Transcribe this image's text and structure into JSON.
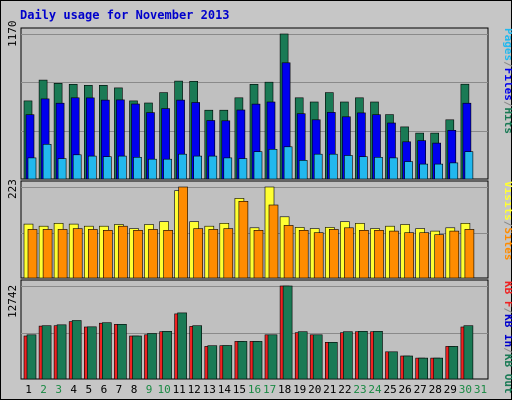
{
  "colors": {
    "frame_bg": "#c6c6c6",
    "plot_bg": "#c0c0c0",
    "page_bg": "#ffffff",
    "title": "#0000cc",
    "grid": "#8a8a8a",
    "hits": "#1a7a55",
    "files": "#0000ee",
    "pages": "#22b8ee",
    "visits": "#ffff33",
    "sites": "#ff8c00",
    "kb_f": "#ee2222",
    "kb_in": "#0000cc",
    "kb_out": "#1a7a55",
    "weekend_label": "#1a8a44",
    "weekday_label": "#000000"
  },
  "chart_data": {
    "type": "bar",
    "title": "Daily usage for November 2013",
    "categories": [
      "1",
      "2",
      "3",
      "4",
      "5",
      "6",
      "7",
      "8",
      "9",
      "10",
      "11",
      "12",
      "13",
      "14",
      "15",
      "16",
      "17",
      "18",
      "19",
      "20",
      "21",
      "22",
      "23",
      "24",
      "25",
      "26",
      "27",
      "28",
      "29",
      "30",
      "31"
    ],
    "weekend_days": [
      "2",
      "3",
      "9",
      "10",
      "16",
      "17",
      "23",
      "24",
      "30",
      "31"
    ],
    "panels": [
      {
        "name": "top",
        "ymax_label": "1170",
        "ymax": 1170,
        "legend": [
          "Pages",
          "/",
          "Files",
          "/",
          "Hits"
        ],
        "legend_colors": [
          "pages",
          "grid",
          "files",
          "grid",
          "hits"
        ],
        "series": [
          {
            "name": "Hits",
            "color": "hits",
            "values": [
              630,
              798,
              772,
              764,
              756,
              756,
              735,
              630,
              613,
              697,
              790,
              788,
              555,
              555,
              655,
              764,
              781,
              1170,
              655,
              621,
              697,
              621,
              655,
              621,
              520,
              420,
              370,
              370,
              478,
              765,
              0
            ]
          },
          {
            "name": "Files",
            "color": "files",
            "values": [
              519,
              646,
              612,
              655,
              654,
              637,
              638,
              605,
              536,
              568,
              637,
              617,
              472,
              470,
              557,
              604,
              621,
              938,
              527,
              478,
              537,
              502,
              533,
              519,
              452,
              300,
              310,
              290,
              393,
              612,
              0
            ]
          },
          {
            "name": "Pages",
            "color": "pages",
            "values": [
              170,
              280,
              165,
              195,
              185,
              180,
              185,
              175,
              160,
              160,
              200,
              185,
              185,
              170,
              165,
              220,
              240,
              260,
              150,
              200,
              200,
              190,
              180,
              175,
              170,
              140,
              120,
              120,
              130,
              220,
              0
            ]
          }
        ]
      },
      {
        "name": "middle",
        "ymax_label": "223",
        "ymax": 223,
        "legend": [
          "Visits",
          "/",
          "Sites"
        ],
        "legend_colors": [
          "visits",
          "grid",
          "sites"
        ],
        "series": [
          {
            "name": "Visits",
            "color": "visits",
            "values": [
              132,
              127,
              134,
              132,
              127,
              127,
              131,
              121,
              131,
              138,
              214,
              138,
              127,
              134,
              195,
              123,
              223,
              150,
              124,
              121,
              124,
              138,
              134,
              121,
              127,
              131,
              121,
              115,
              123,
              134,
              0
            ]
          },
          {
            "name": "Sites",
            "color": "sites",
            "values": [
              119,
              119,
              119,
              121,
              119,
              117,
              127,
              117,
              119,
              117,
              223,
              121,
              119,
              121,
              188,
              117,
              179,
              129,
              117,
              111,
              119,
              123,
              117,
              117,
              115,
              111,
              111,
              106,
              115,
              119,
              0
            ]
          }
        ]
      },
      {
        "name": "bottom",
        "ymax_label": "12742",
        "ymax": 12742,
        "legend": [
          "KB F",
          "/",
          "KB In",
          "/",
          "KB Out"
        ],
        "legend_colors": [
          "kb_f",
          "grid",
          "kb_in",
          "grid",
          "kb_out"
        ],
        "series": [
          {
            "name": "KB F",
            "color": "kb_f",
            "values": [
              5890,
              7250,
              7300,
              7870,
              7130,
              7640,
              7500,
              5890,
              6050,
              6480,
              8920,
              7200,
              4460,
              4560,
              5150,
              5150,
              6050,
              12742,
              6350,
              6050,
              5030,
              6350,
              6480,
              6480,
              3730,
              3150,
              2870,
              2870,
              4460,
              7130,
              0
            ]
          },
          {
            "name": "KB Out",
            "color": "kb_out",
            "values": [
              6050,
              7300,
              7430,
              8020,
              7150,
              7710,
              7500,
              5890,
              6240,
              6530,
              9050,
              7300,
              4560,
              4590,
              5150,
              5150,
              6050,
              12742,
              6480,
              6050,
              5030,
              6480,
              6530,
              6530,
              3730,
              3150,
              2870,
              2870,
              4460,
              7300,
              0
            ]
          }
        ]
      }
    ]
  }
}
